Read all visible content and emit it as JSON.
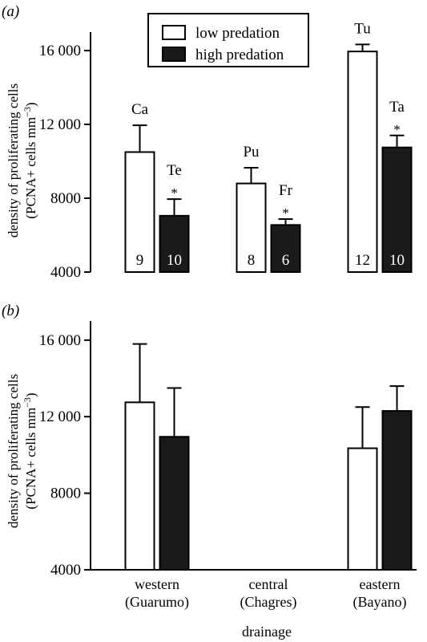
{
  "figure": {
    "panel_a_label": "(a)",
    "panel_b_label": "(b)",
    "ylabel_line1": "density of proliferating cells",
    "ylabel_line2": "(PCNA+ cells mm",
    "ylabel_sup": "−3",
    "ylabel_close": ")",
    "xlabel": "drainage"
  },
  "legend": {
    "low_label": "low predation",
    "high_label": "high predation"
  },
  "colors": {
    "low": "#ffffff",
    "high": "#1a1a1a",
    "axis": "#000000"
  },
  "chart_data": [
    {
      "type": "bar",
      "panel": "a",
      "ylim": [
        4000,
        17000
      ],
      "yticks": [
        4000,
        8000,
        12000,
        16000
      ],
      "ytick_labels": [
        "4000",
        "8000",
        "12 000",
        "16 000"
      ],
      "categories": [
        "western (Guarumo)",
        "central (Chagres)",
        "eastern (Bayano)"
      ],
      "series": [
        {
          "name": "low predation",
          "values": [
            10500,
            8800,
            15950
          ],
          "errors": [
            1450,
            850,
            380
          ],
          "site_labels": [
            "Ca",
            "Pu",
            "Tu"
          ],
          "n": [
            "9",
            "8",
            "12"
          ],
          "significant": [
            false,
            false,
            false
          ]
        },
        {
          "name": "high predation",
          "values": [
            7050,
            6550,
            10750
          ],
          "errors": [
            900,
            320,
            650
          ],
          "site_labels": [
            "Te",
            "Fr",
            "Ta"
          ],
          "n": [
            "10",
            "6",
            "10"
          ],
          "significant": [
            true,
            true,
            true
          ]
        }
      ]
    },
    {
      "type": "bar",
      "panel": "b",
      "ylim": [
        4000,
        17000
      ],
      "yticks": [
        4000,
        8000,
        12000,
        16000
      ],
      "ytick_labels": [
        "4000",
        "8000",
        "12 000",
        "16 000"
      ],
      "categories": [
        "western (Guarumo)",
        "central (Chagres)",
        "eastern (Bayano)"
      ],
      "category_lines": [
        [
          "western",
          "(Guarumo)"
        ],
        [
          "central",
          "(Chagres)"
        ],
        [
          "eastern",
          "(Bayano)"
        ]
      ],
      "series": [
        {
          "name": "low predation",
          "values": [
            12750,
            null,
            10350
          ],
          "errors": [
            3050,
            null,
            2150
          ]
        },
        {
          "name": "high predation",
          "values": [
            10950,
            null,
            12300
          ],
          "errors": [
            2550,
            null,
            1300
          ]
        }
      ]
    }
  ],
  "significance_marker": "*"
}
